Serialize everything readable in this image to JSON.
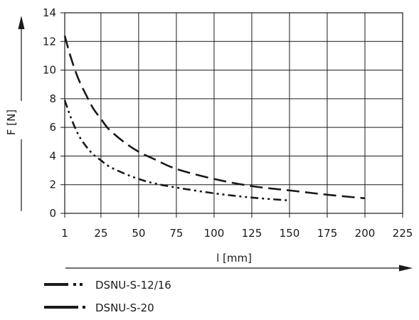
{
  "chart_data": {
    "type": "line",
    "title": "",
    "xlabel": "l [mm]",
    "ylabel": "F [N]",
    "xlim": [
      1,
      225
    ],
    "ylim": [
      0,
      14
    ],
    "x_ticks": [
      1,
      25,
      50,
      75,
      100,
      125,
      150,
      175,
      200,
      225
    ],
    "x_tick_labels": [
      "1",
      "25",
      "50",
      "75",
      "100",
      "125",
      "150",
      "175",
      "200",
      "225"
    ],
    "y_ticks": [
      0,
      2,
      4,
      6,
      8,
      10,
      12,
      14
    ],
    "y_tick_labels": [
      "0",
      "2",
      "4",
      "6",
      "8",
      "10",
      "12",
      "14"
    ],
    "grid": true,
    "legend_position": "bottom-left",
    "series": [
      {
        "name": "DSNU-S-12/16",
        "line_style": "dash-dot-dot",
        "color": "#1a1a1a",
        "x": [
          1,
          5,
          10,
          15,
          20,
          25,
          30,
          40,
          50,
          60,
          75,
          100,
          125,
          150
        ],
        "y": [
          7.9,
          6.7,
          5.5,
          4.7,
          4.1,
          3.7,
          3.3,
          2.8,
          2.4,
          2.1,
          1.8,
          1.4,
          1.1,
          0.9
        ]
      },
      {
        "name": "DSNU-S-20",
        "line_style": "long-dash",
        "color": "#1a1a1a",
        "x": [
          1,
          5,
          10,
          15,
          20,
          25,
          30,
          40,
          50,
          60,
          75,
          100,
          125,
          150,
          175,
          200
        ],
        "y": [
          12.4,
          10.9,
          9.4,
          8.3,
          7.3,
          6.6,
          5.9,
          5.0,
          4.3,
          3.8,
          3.1,
          2.4,
          1.9,
          1.6,
          1.3,
          1.05
        ]
      }
    ]
  }
}
